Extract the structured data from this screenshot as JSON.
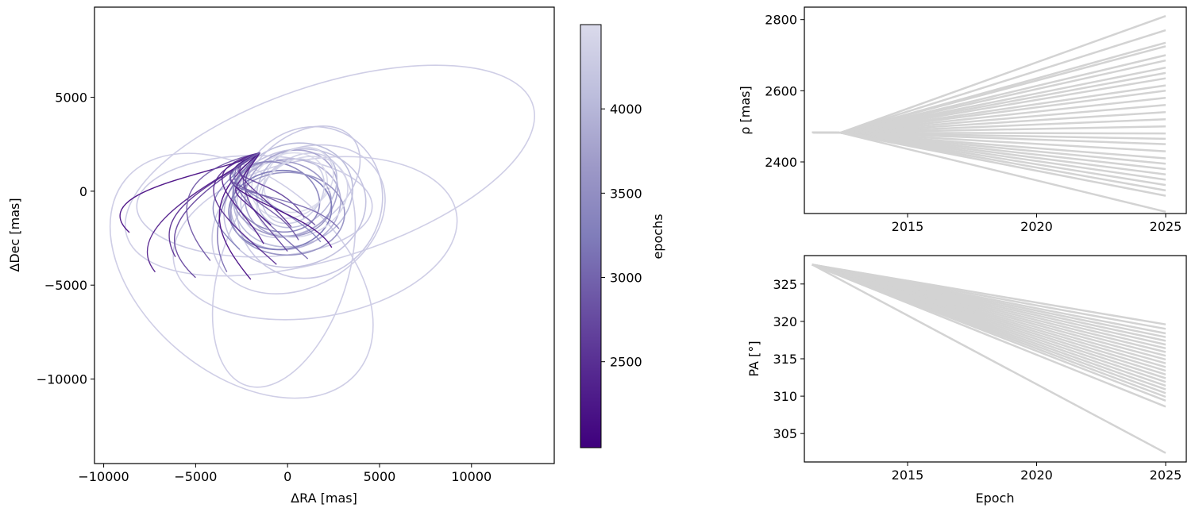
{
  "chart_data": [
    {
      "type": "line",
      "subtype": "orbit-tracks",
      "title": "",
      "xlabel": "ΔRA [mas]",
      "ylabel": "ΔDec [mas]",
      "xlim": [
        -10500,
        14500
      ],
      "ylim": [
        -14500,
        9800
      ],
      "xticks": [
        -10000,
        -5000,
        0,
        5000,
        10000
      ],
      "yticks": [
        5000,
        0,
        -5000,
        -10000
      ],
      "xtick_labels": [
        "−10000",
        "−5000",
        "0",
        "5000",
        "10000"
      ],
      "ytick_labels": [
        "5000",
        "0",
        "−5000",
        "−10000"
      ],
      "anchor_point": [
        -1500,
        2050
      ],
      "color_scale": "purples",
      "colorbar": {
        "label": "epochs",
        "range": [
          1990,
          4500
        ],
        "ticks": [
          2500,
          3000,
          3500,
          4000
        ],
        "tick_labels": [
          "2500",
          "3000",
          "3500",
          "4000"
        ],
        "colors": [
          "#3f007d",
          "#54278f",
          "#6a51a3",
          "#807dba",
          "#9e9ac8",
          "#bcbddc",
          "#dadaeb"
        ]
      },
      "orbits": [
        {
          "center": [
            2300,
            1100
          ],
          "a": 11600,
          "b": 4600,
          "angle_deg": 18,
          "color": "#cfcee6"
        },
        {
          "center": [
            -2500,
            -4500
          ],
          "a": 8200,
          "b": 5200,
          "angle_deg": -40,
          "color": "#cfcee6"
        },
        {
          "center": [
            1500,
            -2500
          ],
          "a": 7800,
          "b": 4200,
          "angle_deg": 10,
          "color": "#cfcee6"
        },
        {
          "center": [
            -200,
            -4200
          ],
          "a": 6600,
          "b": 3400,
          "angle_deg": 72,
          "color": "#cfcee6"
        },
        {
          "center": [
            600,
            -1500
          ],
          "a": 5000,
          "b": 3600,
          "angle_deg": 30,
          "color": "#cdcce5"
        },
        {
          "center": [
            -1800,
            -800
          ],
          "a": 6400,
          "b": 2700,
          "angle_deg": 0,
          "color": "#cdcce5"
        },
        {
          "center": [
            400,
            -900
          ],
          "a": 3900,
          "b": 3100,
          "angle_deg": 15,
          "color": "#c4c3e0"
        },
        {
          "center": [
            1200,
            -600
          ],
          "a": 4200,
          "b": 3800,
          "angle_deg": 60,
          "color": "#c9c8e3"
        },
        {
          "center": [
            300,
            -200
          ],
          "a": 3300,
          "b": 2700,
          "angle_deg": 20,
          "color": "#bcbddc"
        },
        {
          "center": [
            700,
            500
          ],
          "a": 3700,
          "b": 2400,
          "angle_deg": 40,
          "color": "#c9c8e3"
        },
        {
          "center": [
            -100,
            -700
          ],
          "a": 3000,
          "b": 2400,
          "angle_deg": 10,
          "color": "#b3b0d6"
        },
        {
          "center": [
            200,
            -100
          ],
          "a": 2600,
          "b": 2200,
          "angle_deg": 30,
          "color": "#a9a5d0"
        },
        {
          "center": [
            -300,
            -400
          ],
          "a": 2700,
          "b": 2000,
          "angle_deg": -10,
          "color": "#9e9ac8"
        },
        {
          "center": [
            500,
            200
          ],
          "a": 2400,
          "b": 1900,
          "angle_deg": 45,
          "color": "#bcbddc"
        },
        {
          "center": [
            100,
            300
          ],
          "a": 2100,
          "b": 1700,
          "angle_deg": 20,
          "color": "#dadaeb"
        },
        {
          "center": [
            600,
            600
          ],
          "a": 2000,
          "b": 1600,
          "angle_deg": 35,
          "color": "#dadaeb"
        },
        {
          "center": [
            -600,
            -300
          ],
          "a": 2400,
          "b": 1800,
          "angle_deg": -20,
          "color": "#8f8ac0"
        },
        {
          "center": [
            -400,
            -1000
          ],
          "a": 2800,
          "b": 2100,
          "angle_deg": 5,
          "color": "#807dba"
        },
        {
          "center": [
            0,
            -1200
          ],
          "a": 3100,
          "b": 2200,
          "angle_deg": 0,
          "color": "#9a96c6"
        },
        {
          "center": [
            300,
            0
          ],
          "a": 1900,
          "b": 1500,
          "angle_deg": 50,
          "color": "#cecfe6"
        },
        {
          "center": [
            800,
            -300
          ],
          "a": 2600,
          "b": 2000,
          "angle_deg": 30,
          "color": "#d5d5e9"
        }
      ]
    },
    {
      "type": "line",
      "title": "",
      "xlabel": "",
      "ylabel": "ρ [mas]",
      "xlim": [
        2011.0,
        2025.8
      ],
      "ylim": [
        2255,
        2835
      ],
      "xticks": [
        2015,
        2020,
        2025
      ],
      "xtick_labels": [
        "2015",
        "2020",
        "2025"
      ],
      "yticks": [
        2400,
        2600,
        2800
      ],
      "ytick_labels": [
        "2400",
        "2600",
        "2800"
      ],
      "line_color": "#d3d3d3",
      "x": [
        2011.3,
        2012.4,
        2025.0
      ],
      "series": [
        {
          "values": [
            2483,
            2482,
            2810
          ]
        },
        {
          "values": [
            2483,
            2482,
            2770
          ]
        },
        {
          "values": [
            2483,
            2482,
            2735
          ]
        },
        {
          "values": [
            2483,
            2482,
            2725
          ]
        },
        {
          "values": [
            2483,
            2482,
            2700
          ]
        },
        {
          "values": [
            2483,
            2482,
            2685
          ]
        },
        {
          "values": [
            2483,
            2482,
            2665
          ]
        },
        {
          "values": [
            2483,
            2482,
            2650
          ]
        },
        {
          "values": [
            2483,
            2482,
            2635
          ]
        },
        {
          "values": [
            2483,
            2482,
            2615
          ]
        },
        {
          "values": [
            2483,
            2482,
            2600
          ]
        },
        {
          "values": [
            2483,
            2482,
            2580
          ]
        },
        {
          "values": [
            2483,
            2482,
            2560
          ]
        },
        {
          "values": [
            2483,
            2482,
            2540
          ]
        },
        {
          "values": [
            2483,
            2482,
            2520
          ]
        },
        {
          "values": [
            2483,
            2482,
            2500
          ]
        },
        {
          "values": [
            2483,
            2482,
            2480
          ]
        },
        {
          "values": [
            2483,
            2482,
            2465
          ]
        },
        {
          "values": [
            2483,
            2482,
            2450
          ]
        },
        {
          "values": [
            2483,
            2482,
            2430
          ]
        },
        {
          "values": [
            2483,
            2482,
            2410
          ]
        },
        {
          "values": [
            2483,
            2482,
            2395
          ]
        },
        {
          "values": [
            2483,
            2482,
            2380
          ]
        },
        {
          "values": [
            2483,
            2482,
            2365
          ]
        },
        {
          "values": [
            2483,
            2482,
            2350
          ]
        },
        {
          "values": [
            2483,
            2482,
            2335
          ]
        },
        {
          "values": [
            2483,
            2482,
            2320
          ]
        },
        {
          "values": [
            2483,
            2482,
            2305
          ]
        },
        {
          "values": [
            2483,
            2482,
            2260
          ]
        }
      ]
    },
    {
      "type": "line",
      "title": "",
      "xlabel": "Epoch",
      "ylabel": "PA [°]",
      "xlim": [
        2011.0,
        2025.8
      ],
      "ylim": [
        301.2,
        328.8
      ],
      "xticks": [
        2015,
        2020,
        2025
      ],
      "xtick_labels": [
        "2015",
        "2020",
        "2025"
      ],
      "yticks": [
        305,
        310,
        315,
        320,
        325
      ],
      "ytick_labels": [
        "305",
        "310",
        "315",
        "320",
        "325"
      ],
      "line_color": "#d3d3d3",
      "x": [
        2011.3,
        2025.0
      ],
      "series": [
        {
          "values": [
            327.6,
            319.6
          ]
        },
        {
          "values": [
            327.6,
            319.0
          ]
        },
        {
          "values": [
            327.6,
            318.4
          ]
        },
        {
          "values": [
            327.6,
            317.9
          ]
        },
        {
          "values": [
            327.6,
            317.4
          ]
        },
        {
          "values": [
            327.6,
            316.9
          ]
        },
        {
          "values": [
            327.6,
            316.4
          ]
        },
        {
          "values": [
            327.6,
            315.9
          ]
        },
        {
          "values": [
            327.6,
            315.4
          ]
        },
        {
          "values": [
            327.6,
            314.9
          ]
        },
        {
          "values": [
            327.6,
            314.4
          ]
        },
        {
          "values": [
            327.6,
            313.9
          ]
        },
        {
          "values": [
            327.6,
            313.4
          ]
        },
        {
          "values": [
            327.6,
            312.9
          ]
        },
        {
          "values": [
            327.6,
            312.4
          ]
        },
        {
          "values": [
            327.6,
            311.9
          ]
        },
        {
          "values": [
            327.6,
            311.4
          ]
        },
        {
          "values": [
            327.6,
            310.9
          ]
        },
        {
          "values": [
            327.6,
            310.4
          ]
        },
        {
          "values": [
            327.6,
            309.9
          ]
        },
        {
          "values": [
            327.6,
            309.4
          ]
        },
        {
          "values": [
            327.6,
            308.6
          ]
        },
        {
          "values": [
            327.6,
            302.4
          ]
        }
      ]
    }
  ]
}
